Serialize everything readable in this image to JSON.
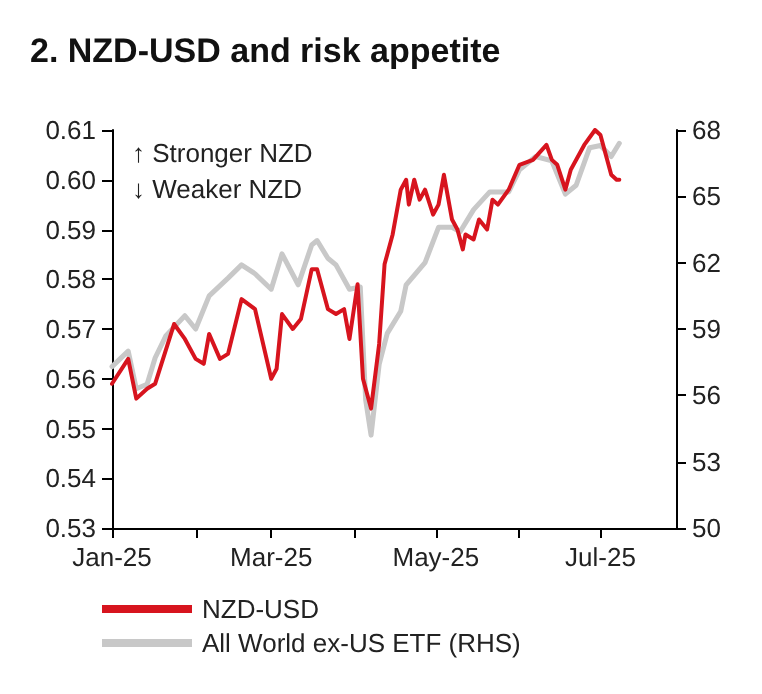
{
  "chart_data": {
    "type": "line",
    "title": "2. NZD-USD and risk appetite",
    "annotations": [
      "↑ Stronger NZD",
      "↓ Weaker NZD"
    ],
    "xlim": [
      "2025-01-01",
      "2025-07-29"
    ],
    "xticks": [
      {
        "value": "2025-01-01",
        "label": "Jan-25"
      },
      {
        "value": "2025-02-01",
        "label": null
      },
      {
        "value": "2025-03-01",
        "label": "Mar-25"
      },
      {
        "value": "2025-04-01",
        "label": null
      },
      {
        "value": "2025-05-01",
        "label": "May-25"
      },
      {
        "value": "2025-06-01",
        "label": null
      },
      {
        "value": "2025-07-01",
        "label": "Jul-25"
      }
    ],
    "ylim": [
      0.53,
      0.61
    ],
    "yticks": [
      0.53,
      0.54,
      0.55,
      0.56,
      0.57,
      0.58,
      0.59,
      {
        "value": 0.6,
        "label": "0.60"
      },
      0.61
    ],
    "y2lim": [
      50,
      68
    ],
    "y2ticks": [
      50,
      53,
      56,
      59,
      62,
      65,
      68
    ],
    "grid": false,
    "legend": "bottom",
    "marker": "none",
    "line_style": "solid",
    "series": [
      {
        "name": "NZD-USD",
        "color": "#d7141e",
        "x": [
          "2025-01-01",
          "2025-01-07",
          "2025-01-10",
          "2025-01-14",
          "2025-01-17",
          "2025-01-24",
          "2025-01-28",
          "2025-02-01",
          "2025-02-04",
          "2025-02-06",
          "2025-02-10",
          "2025-02-13",
          "2025-02-18",
          "2025-02-23",
          "2025-03-01",
          "2025-03-03",
          "2025-03-05",
          "2025-03-09",
          "2025-03-12",
          "2025-03-16",
          "2025-03-18",
          "2025-03-22",
          "2025-03-25",
          "2025-03-28",
          "2025-03-30",
          "2025-04-02",
          "2025-04-04",
          "2025-04-07",
          "2025-04-10",
          "2025-04-12",
          "2025-04-15",
          "2025-04-18",
          "2025-04-20",
          "2025-04-21",
          "2025-04-23",
          "2025-04-25",
          "2025-04-27",
          "2025-04-30",
          "2025-05-02",
          "2025-05-04",
          "2025-05-07",
          "2025-05-09",
          "2025-05-11",
          "2025-05-12",
          "2025-05-15",
          "2025-05-17",
          "2025-05-20",
          "2025-05-22",
          "2025-05-24",
          "2025-05-28",
          "2025-06-01",
          "2025-06-06",
          "2025-06-11",
          "2025-06-13",
          "2025-06-15",
          "2025-06-18",
          "2025-06-20",
          "2025-06-25",
          "2025-06-29",
          "2025-07-01",
          "2025-07-05",
          "2025-07-07",
          "2025-07-08"
        ],
        "values": [
          0.559,
          0.564,
          0.556,
          0.558,
          0.559,
          0.571,
          0.568,
          0.564,
          0.563,
          0.569,
          0.564,
          0.565,
          0.576,
          0.574,
          0.56,
          0.562,
          0.573,
          0.57,
          0.572,
          0.582,
          0.582,
          0.574,
          0.573,
          0.574,
          0.568,
          0.579,
          0.56,
          0.554,
          0.567,
          0.583,
          0.589,
          0.598,
          0.6,
          0.595,
          0.6,
          0.596,
          0.598,
          0.593,
          0.595,
          0.601,
          0.592,
          0.59,
          0.586,
          0.589,
          0.588,
          0.592,
          0.59,
          0.596,
          0.595,
          0.598,
          0.603,
          0.604,
          0.607,
          0.604,
          0.603,
          0.598,
          0.602,
          0.607,
          0.61,
          0.609,
          0.601,
          0.6,
          0.6
        ]
      },
      {
        "name": "All World ex-US ETF (RHS)",
        "color": "#c8c8c8",
        "axis": "y2",
        "x": [
          "2025-01-01",
          "2025-01-07",
          "2025-01-10",
          "2025-01-14",
          "2025-01-17",
          "2025-01-21",
          "2025-01-28",
          "2025-02-01",
          "2025-02-06",
          "2025-02-13",
          "2025-02-18",
          "2025-02-23",
          "2025-03-01",
          "2025-03-05",
          "2025-03-11",
          "2025-03-16",
          "2025-03-18",
          "2025-03-22",
          "2025-03-25",
          "2025-03-30",
          "2025-04-03",
          "2025-04-05",
          "2025-04-07",
          "2025-04-10",
          "2025-04-13",
          "2025-04-18",
          "2025-04-20",
          "2025-04-27",
          "2025-05-02",
          "2025-05-07",
          "2025-05-10",
          "2025-05-15",
          "2025-05-21",
          "2025-05-28",
          "2025-06-01",
          "2025-06-07",
          "2025-06-13",
          "2025-06-18",
          "2025-06-22",
          "2025-06-27",
          "2025-07-01",
          "2025-07-05",
          "2025-07-08"
        ],
        "values": [
          57.3,
          58.0,
          56.3,
          56.5,
          57.7,
          58.7,
          59.6,
          59.0,
          60.5,
          61.3,
          61.9,
          61.5,
          60.8,
          62.4,
          61.0,
          62.8,
          63.0,
          62.2,
          61.9,
          60.8,
          60.9,
          55.8,
          54.2,
          57.4,
          58.8,
          59.8,
          61.0,
          62.0,
          63.6,
          63.6,
          63.4,
          64.4,
          65.2,
          65.2,
          66.2,
          66.8,
          66.6,
          65.1,
          65.5,
          67.2,
          67.3,
          66.8,
          67.4
        ]
      }
    ]
  }
}
